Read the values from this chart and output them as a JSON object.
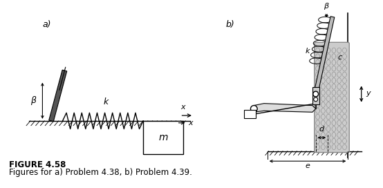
{
  "title": "FIGURE 4.58",
  "subtitle": "Figures for a) Problem 4.38, b) Problem 4.39.",
  "title_fontsize": 8.5,
  "subtitle_fontsize": 8.5,
  "label_a": "a)",
  "label_b": "b)",
  "background_color": "#ffffff",
  "line_color": "#000000",
  "dark_gray": "#444444",
  "med_gray": "#888888",
  "light_gray": "#cccccc"
}
